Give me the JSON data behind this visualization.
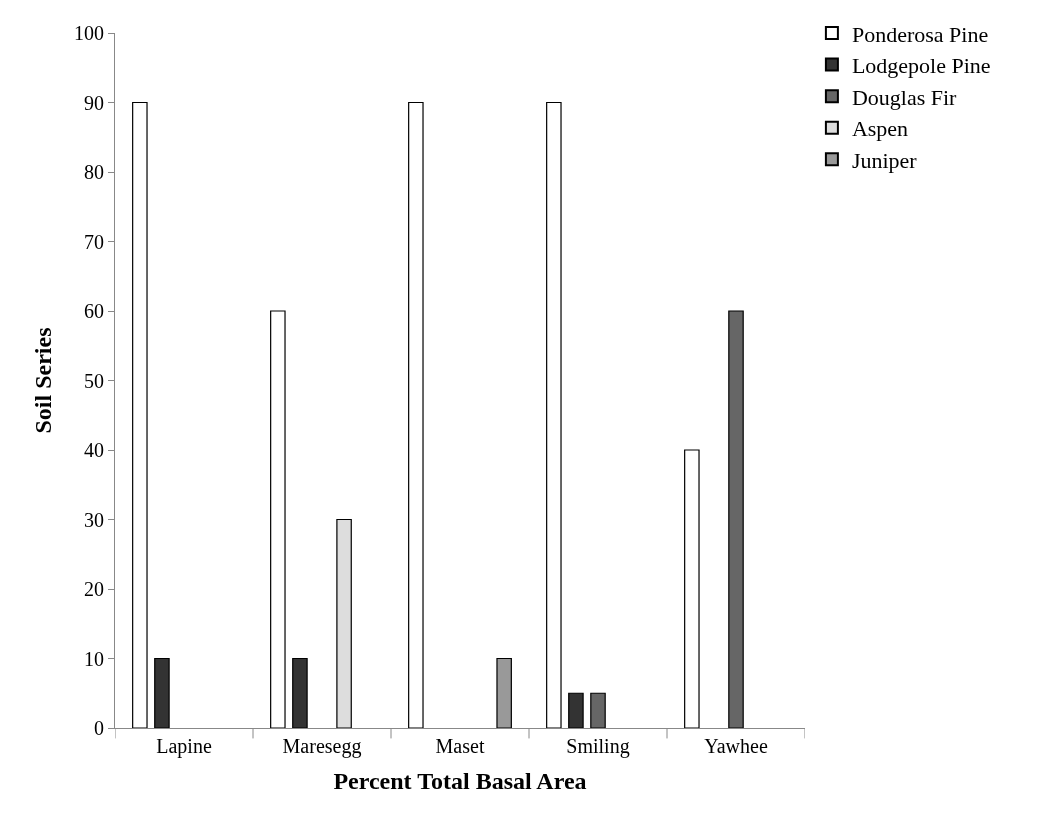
{
  "chart_data": {
    "type": "bar",
    "xlabel": "Percent Total Basal Area",
    "ylabel": "Soil Series",
    "categories": [
      "Lapine",
      "Maresegg",
      "Maset",
      "Smiling",
      "Yawhee"
    ],
    "series": [
      {
        "name": "Ponderosa Pine",
        "color": "#ffffff",
        "values": [
          90,
          60,
          90,
          90,
          40
        ]
      },
      {
        "name": "Lodgepole Pine",
        "color": "#333333",
        "values": [
          10,
          10,
          null,
          5,
          null
        ]
      },
      {
        "name": "Douglas Fir",
        "color": "#666666",
        "values": [
          null,
          null,
          null,
          5,
          60
        ]
      },
      {
        "name": "Aspen",
        "color": "#dddddd",
        "values": [
          null,
          30,
          null,
          null,
          null
        ]
      },
      {
        "name": "Juniper",
        "color": "#999999",
        "values": [
          null,
          null,
          10,
          null,
          null
        ]
      }
    ],
    "ylim": [
      0,
      100
    ],
    "yticks": [
      0,
      10,
      20,
      30,
      40,
      50,
      60,
      70,
      80,
      90,
      100
    ],
    "legend": "top right"
  }
}
